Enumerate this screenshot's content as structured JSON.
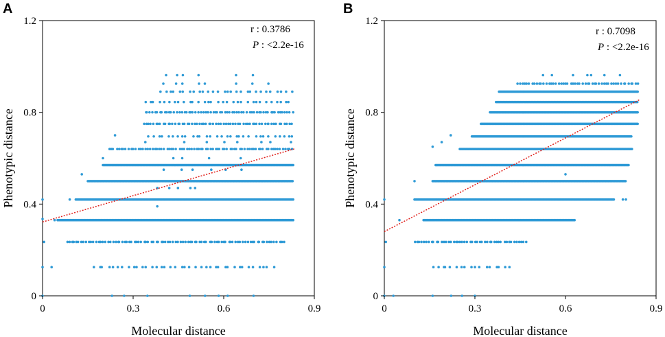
{
  "colors": {
    "points": "#2E9AD6",
    "trend": "#E0201B",
    "axis": "#000000"
  },
  "chart_data": [
    {
      "type": "scatter",
      "panel_label": "A",
      "xlabel": "Molecular distance",
      "ylabel": "Phenotypic distance",
      "xlim": [
        0,
        0.9
      ],
      "ylim": [
        0,
        1.2
      ],
      "xticks": [
        0,
        0.3,
        0.6,
        0.9
      ],
      "xtick_labels": [
        "0",
        "0.3",
        "0.6",
        "0.9"
      ],
      "yticks": [
        0,
        0.4,
        0.8,
        1.2
      ],
      "ytick_labels": [
        "0",
        "0.4",
        "0.8",
        "1.2"
      ],
      "stats": {
        "r_text": "r : 0.3786",
        "p_symbol": "P",
        "p_text": ": <2.2e-16"
      },
      "trend_line": {
        "x": [
          0,
          0.835
        ],
        "y": [
          0.322,
          0.641
        ]
      },
      "bands": [
        {
          "y": 0.962,
          "xmin": 0.37,
          "xmax": 0.7,
          "density": "sparse"
        },
        {
          "y": 0.925,
          "xmin": 0.4,
          "xmax": 0.8,
          "density": "sparse"
        },
        {
          "y": 0.89,
          "xmin": 0.39,
          "xmax": 0.83,
          "density": "medium"
        },
        {
          "y": 0.845,
          "xmin": 0.34,
          "xmax": 0.83,
          "density": "medium"
        },
        {
          "y": 0.8,
          "xmin": 0.34,
          "xmax": 0.83,
          "density": "dense"
        },
        {
          "y": 0.75,
          "xmin": 0.335,
          "xmax": 0.83,
          "density": "dense"
        },
        {
          "y": 0.695,
          "xmin": 0.35,
          "xmax": 0.83,
          "density": "medium"
        },
        {
          "y": 0.67,
          "xmin": 0.33,
          "xmax": 0.83,
          "density": "sparse"
        },
        {
          "y": 0.64,
          "xmin": 0.22,
          "xmax": 0.83,
          "density": "dense"
        },
        {
          "y": 0.6,
          "xmin": 0.37,
          "xmax": 0.78,
          "density": "sparse"
        },
        {
          "y": 0.57,
          "xmin": 0.2,
          "xmax": 0.83,
          "density": "solid"
        },
        {
          "y": 0.55,
          "xmin": 0.37,
          "xmax": 0.7,
          "density": "sparse"
        },
        {
          "y": 0.5,
          "xmin": 0.15,
          "xmax": 0.83,
          "density": "solid"
        },
        {
          "y": 0.47,
          "xmin": 0.38,
          "xmax": 0.55,
          "density": "sparse"
        },
        {
          "y": 0.42,
          "xmin": 0.11,
          "xmax": 0.83,
          "density": "solid"
        },
        {
          "y": 0.33,
          "xmin": 0.05,
          "xmax": 0.83,
          "density": "solid"
        },
        {
          "y": 0.235,
          "xmin": 0.08,
          "xmax": 0.8,
          "density": "dense"
        },
        {
          "y": 0.125,
          "xmin": 0.17,
          "xmax": 0.77,
          "density": "medium"
        },
        {
          "y": 0.0,
          "xmin": 0.23,
          "xmax": 0.73,
          "density": "sparse"
        }
      ],
      "extra_points": [
        [
          0.0,
          0.42
        ],
        [
          0.0,
          0.335
        ],
        [
          0.005,
          0.235
        ],
        [
          0.0,
          0.125
        ],
        [
          0.03,
          0.125
        ],
        [
          0.0,
          0.0
        ],
        [
          0.13,
          0.53
        ],
        [
          0.2,
          0.6
        ],
        [
          0.24,
          0.7
        ],
        [
          0.38,
          0.39
        ],
        [
          0.04,
          0.33
        ],
        [
          0.09,
          0.42
        ]
      ]
    },
    {
      "type": "scatter",
      "panel_label": "B",
      "xlabel": "Molecular distance",
      "ylabel": "Phenotypic distance",
      "xlim": [
        0,
        0.9
      ],
      "ylim": [
        0,
        1.2
      ],
      "xticks": [
        0,
        0.3,
        0.6,
        0.9
      ],
      "xtick_labels": [
        "0",
        "0.3",
        "0.6",
        "0.9"
      ],
      "yticks": [
        0,
        0.4,
        0.8,
        1.2
      ],
      "ytick_labels": [
        "0",
        "0.4",
        "0.8",
        "1.2"
      ],
      "stats": {
        "r_text": "r : 0.7098",
        "p_symbol": "P",
        "p_text": ": <2.2e-16"
      },
      "trend_line": {
        "x": [
          0,
          0.845
        ],
        "y": [
          0.28,
          0.855
        ]
      },
      "bands": [
        {
          "y": 0.962,
          "xmin": 0.52,
          "xmax": 0.84,
          "density": "sparse"
        },
        {
          "y": 0.925,
          "xmin": 0.44,
          "xmax": 0.84,
          "density": "dense"
        },
        {
          "y": 0.89,
          "xmin": 0.38,
          "xmax": 0.84,
          "density": "solid"
        },
        {
          "y": 0.845,
          "xmin": 0.37,
          "xmax": 0.84,
          "density": "solid"
        },
        {
          "y": 0.8,
          "xmin": 0.35,
          "xmax": 0.84,
          "density": "solid"
        },
        {
          "y": 0.75,
          "xmin": 0.32,
          "xmax": 0.84,
          "density": "solid"
        },
        {
          "y": 0.695,
          "xmin": 0.29,
          "xmax": 0.82,
          "density": "solid"
        },
        {
          "y": 0.64,
          "xmin": 0.25,
          "xmax": 0.82,
          "density": "solid"
        },
        {
          "y": 0.57,
          "xmin": 0.17,
          "xmax": 0.81,
          "density": "solid"
        },
        {
          "y": 0.5,
          "xmin": 0.16,
          "xmax": 0.8,
          "density": "solid"
        },
        {
          "y": 0.42,
          "xmin": 0.1,
          "xmax": 0.76,
          "density": "solid"
        },
        {
          "y": 0.33,
          "xmin": 0.13,
          "xmax": 0.63,
          "density": "solid"
        },
        {
          "y": 0.235,
          "xmin": 0.1,
          "xmax": 0.47,
          "density": "dense"
        },
        {
          "y": 0.125,
          "xmin": 0.16,
          "xmax": 0.43,
          "density": "medium"
        },
        {
          "y": 0.0,
          "xmin": 0.16,
          "xmax": 0.3,
          "density": "sparse"
        }
      ],
      "extra_points": [
        [
          0.0,
          0.42
        ],
        [
          0.005,
          0.235
        ],
        [
          0.0,
          0.125
        ],
        [
          0.0,
          0.0
        ],
        [
          0.03,
          0.0
        ],
        [
          0.1,
          0.5
        ],
        [
          0.16,
          0.65
        ],
        [
          0.19,
          0.67
        ],
        [
          0.22,
          0.7
        ],
        [
          0.6,
          0.53
        ],
        [
          0.63,
          0.33
        ],
        [
          0.05,
          0.33
        ],
        [
          0.8,
          0.42
        ],
        [
          0.79,
          0.42
        ]
      ]
    }
  ]
}
